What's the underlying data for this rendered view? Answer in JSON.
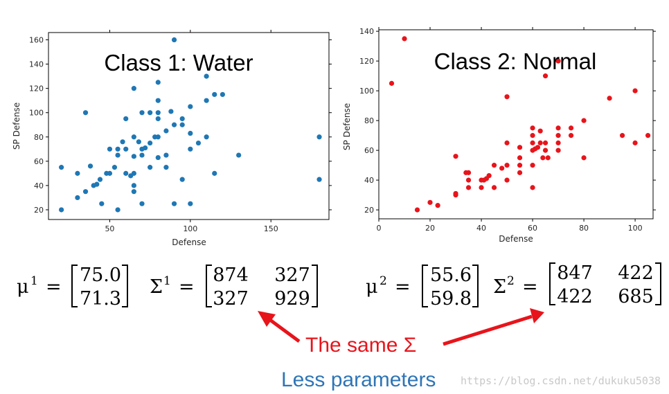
{
  "chart_data": [
    {
      "type": "scatter",
      "title": "Class 1: Water",
      "xlabel": "Defense",
      "ylabel": "SP Defense",
      "xlim": [
        12,
        186
      ],
      "ylim": [
        12,
        166
      ],
      "xticks": [
        50,
        100,
        150
      ],
      "yticks": [
        20,
        40,
        60,
        80,
        100,
        120,
        140,
        160
      ],
      "color": "#1f77b4",
      "points": [
        {
          "x": 20,
          "y": 55
        },
        {
          "x": 20,
          "y": 20
        },
        {
          "x": 30,
          "y": 50
        },
        {
          "x": 30,
          "y": 30
        },
        {
          "x": 35,
          "y": 100
        },
        {
          "x": 35,
          "y": 35
        },
        {
          "x": 38,
          "y": 56
        },
        {
          "x": 40,
          "y": 40
        },
        {
          "x": 42,
          "y": 41
        },
        {
          "x": 44,
          "y": 45
        },
        {
          "x": 45,
          "y": 25
        },
        {
          "x": 48,
          "y": 50
        },
        {
          "x": 50,
          "y": 50
        },
        {
          "x": 50,
          "y": 70
        },
        {
          "x": 53,
          "y": 55
        },
        {
          "x": 55,
          "y": 70
        },
        {
          "x": 55,
          "y": 65
        },
        {
          "x": 55,
          "y": 20
        },
        {
          "x": 58,
          "y": 76
        },
        {
          "x": 60,
          "y": 50
        },
        {
          "x": 60,
          "y": 95
        },
        {
          "x": 60,
          "y": 70
        },
        {
          "x": 63,
          "y": 48
        },
        {
          "x": 65,
          "y": 120
        },
        {
          "x": 65,
          "y": 80
        },
        {
          "x": 65,
          "y": 64
        },
        {
          "x": 65,
          "y": 40
        },
        {
          "x": 65,
          "y": 35
        },
        {
          "x": 65,
          "y": 50
        },
        {
          "x": 68,
          "y": 76
        },
        {
          "x": 70,
          "y": 100
        },
        {
          "x": 70,
          "y": 70
        },
        {
          "x": 70,
          "y": 65
        },
        {
          "x": 70,
          "y": 25
        },
        {
          "x": 72,
          "y": 71
        },
        {
          "x": 75,
          "y": 100
        },
        {
          "x": 75,
          "y": 75
        },
        {
          "x": 75,
          "y": 55
        },
        {
          "x": 78,
          "y": 80
        },
        {
          "x": 80,
          "y": 125
        },
        {
          "x": 80,
          "y": 110
        },
        {
          "x": 80,
          "y": 100
        },
        {
          "x": 80,
          "y": 95
        },
        {
          "x": 80,
          "y": 80
        },
        {
          "x": 80,
          "y": 63
        },
        {
          "x": 85,
          "y": 85
        },
        {
          "x": 85,
          "y": 65
        },
        {
          "x": 85,
          "y": 55
        },
        {
          "x": 88,
          "y": 101
        },
        {
          "x": 90,
          "y": 160
        },
        {
          "x": 90,
          "y": 90
        },
        {
          "x": 90,
          "y": 25
        },
        {
          "x": 95,
          "y": 95
        },
        {
          "x": 95,
          "y": 90
        },
        {
          "x": 95,
          "y": 45
        },
        {
          "x": 100,
          "y": 105
        },
        {
          "x": 100,
          "y": 83
        },
        {
          "x": 100,
          "y": 70
        },
        {
          "x": 100,
          "y": 25
        },
        {
          "x": 105,
          "y": 75
        },
        {
          "x": 110,
          "y": 130
        },
        {
          "x": 110,
          "y": 110
        },
        {
          "x": 110,
          "y": 80
        },
        {
          "x": 115,
          "y": 115
        },
        {
          "x": 115,
          "y": 50
        },
        {
          "x": 120,
          "y": 115
        },
        {
          "x": 130,
          "y": 65
        },
        {
          "x": 180,
          "y": 80
        },
        {
          "x": 180,
          "y": 45
        }
      ]
    },
    {
      "type": "scatter",
      "title": "Class 2: Normal",
      "xlabel": "Defense",
      "ylabel": "SP Defense",
      "xlim": [
        0,
        107
      ],
      "ylim": [
        14,
        141
      ],
      "xticks": [
        0,
        20,
        40,
        60,
        80,
        100
      ],
      "yticks": [
        20,
        40,
        60,
        80,
        100,
        120,
        140
      ],
      "color": "#e8141b",
      "points": [
        {
          "x": 5,
          "y": 105
        },
        {
          "x": 10,
          "y": 135
        },
        {
          "x": 15,
          "y": 20
        },
        {
          "x": 20,
          "y": 25
        },
        {
          "x": 23,
          "y": 23
        },
        {
          "x": 30,
          "y": 56
        },
        {
          "x": 30,
          "y": 31
        },
        {
          "x": 30,
          "y": 30
        },
        {
          "x": 34,
          "y": 45
        },
        {
          "x": 35,
          "y": 45
        },
        {
          "x": 35,
          "y": 40
        },
        {
          "x": 35,
          "y": 35
        },
        {
          "x": 40,
          "y": 40
        },
        {
          "x": 40,
          "y": 35
        },
        {
          "x": 41,
          "y": 40
        },
        {
          "x": 42,
          "y": 41
        },
        {
          "x": 43,
          "y": 43
        },
        {
          "x": 45,
          "y": 50
        },
        {
          "x": 45,
          "y": 35
        },
        {
          "x": 48,
          "y": 48
        },
        {
          "x": 50,
          "y": 96
        },
        {
          "x": 50,
          "y": 65
        },
        {
          "x": 50,
          "y": 50
        },
        {
          "x": 50,
          "y": 40
        },
        {
          "x": 55,
          "y": 62
        },
        {
          "x": 55,
          "y": 55
        },
        {
          "x": 55,
          "y": 50
        },
        {
          "x": 55,
          "y": 45
        },
        {
          "x": 60,
          "y": 75
        },
        {
          "x": 60,
          "y": 70
        },
        {
          "x": 60,
          "y": 65
        },
        {
          "x": 60,
          "y": 60
        },
        {
          "x": 60,
          "y": 50
        },
        {
          "x": 60,
          "y": 35
        },
        {
          "x": 61,
          "y": 61
        },
        {
          "x": 62,
          "y": 62
        },
        {
          "x": 63,
          "y": 73
        },
        {
          "x": 63,
          "y": 65
        },
        {
          "x": 64,
          "y": 55
        },
        {
          "x": 65,
          "y": 110
        },
        {
          "x": 65,
          "y": 65
        },
        {
          "x": 65,
          "y": 60
        },
        {
          "x": 66,
          "y": 55
        },
        {
          "x": 70,
          "y": 120
        },
        {
          "x": 70,
          "y": 75
        },
        {
          "x": 70,
          "y": 70
        },
        {
          "x": 70,
          "y": 65
        },
        {
          "x": 70,
          "y": 60
        },
        {
          "x": 75,
          "y": 75
        },
        {
          "x": 75,
          "y": 70
        },
        {
          "x": 80,
          "y": 80
        },
        {
          "x": 80,
          "y": 55
        },
        {
          "x": 90,
          "y": 95
        },
        {
          "x": 95,
          "y": 70
        },
        {
          "x": 100,
          "y": 100
        },
        {
          "x": 100,
          "y": 65
        },
        {
          "x": 105,
          "y": 70
        }
      ]
    }
  ],
  "formulas": {
    "left": {
      "mu_sym": "μ",
      "mu_sup": "1",
      "mu_vals": [
        "75.0",
        "71.3"
      ],
      "sigma_sym": "Σ",
      "sigma_sup": "1",
      "sigma_rows": [
        [
          "874",
          "327"
        ],
        [
          "327",
          "929"
        ]
      ]
    },
    "right": {
      "mu_sym": "μ",
      "mu_sup": "2",
      "mu_vals": [
        "55.6",
        "59.8"
      ],
      "sigma_sym": "Σ",
      "sigma_sup": "2",
      "sigma_rows": [
        [
          "847",
          "422"
        ],
        [
          "422",
          "685"
        ]
      ]
    },
    "equals": "="
  },
  "annotations": {
    "same_sigma": "The same Σ",
    "less_params": "Less parameters",
    "arrow_color": "#e8141b"
  },
  "watermark": "https://blog.csdn.net/dukuku5038"
}
